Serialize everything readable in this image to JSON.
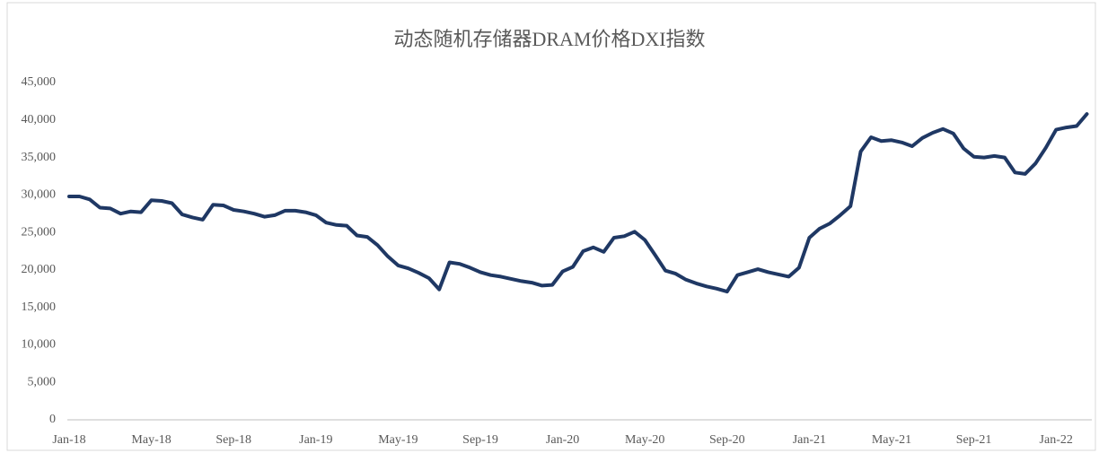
{
  "chart_data": {
    "type": "line",
    "title": "动态随机存储器DRAM价格DXI指数",
    "categories": [
      "Jan-18",
      null,
      null,
      null,
      null,
      null,
      null,
      null,
      "May-18",
      null,
      null,
      null,
      null,
      null,
      null,
      null,
      "Sep-18",
      null,
      null,
      null,
      null,
      null,
      null,
      null,
      "Jan-19",
      null,
      null,
      null,
      null,
      null,
      null,
      null,
      "May-19",
      null,
      null,
      null,
      null,
      null,
      null,
      null,
      "Sep-19",
      null,
      null,
      null,
      null,
      null,
      null,
      null,
      "Jan-20",
      null,
      null,
      null,
      null,
      null,
      null,
      null,
      "May-20",
      null,
      null,
      null,
      null,
      null,
      null,
      null,
      "Sep-20",
      null,
      null,
      null,
      null,
      null,
      null,
      null,
      "Jan-21",
      null,
      null,
      null,
      null,
      null,
      null,
      null,
      "May-21",
      null,
      null,
      null,
      null,
      null,
      null,
      null,
      "Sep-21",
      null,
      null,
      null,
      null,
      null,
      null,
      null,
      "Jan-22",
      null,
      null,
      null
    ],
    "series": [
      {
        "name": "DXI",
        "color": "#1f3864",
        "values": [
          29800,
          29800,
          29400,
          28300,
          28200,
          27500,
          27800,
          27700,
          29300,
          29200,
          28900,
          27400,
          27000,
          26700,
          28700,
          28600,
          28000,
          27800,
          27500,
          27100,
          27300,
          27900,
          27900,
          27700,
          27300,
          26300,
          26000,
          25900,
          24600,
          24400,
          23300,
          21800,
          20600,
          20200,
          19600,
          18900,
          17400,
          21000,
          20800,
          20300,
          19700,
          19300,
          19100,
          18800,
          18500,
          18300,
          17900,
          18000,
          19800,
          20400,
          22500,
          23000,
          22400,
          24300,
          24500,
          25100,
          24000,
          22000,
          19900,
          19500,
          18700,
          18200,
          17800,
          17500,
          17100,
          19300,
          19700,
          20100,
          19700,
          19400,
          19100,
          20300,
          24300,
          25500,
          26200,
          27300,
          28500,
          35800,
          37700,
          37200,
          37300,
          37000,
          36500,
          37600,
          38300,
          38800,
          38200,
          36200,
          35100,
          35000,
          35200,
          35000,
          33000,
          32800,
          34200,
          36300,
          38700,
          39000,
          39200,
          40800
        ]
      }
    ],
    "ylim": [
      0,
      45000
    ],
    "yticks": [
      0,
      {
        "value": 5000,
        "label": "5,000"
      },
      {
        "value": 10000,
        "label": "10,000"
      },
      {
        "value": 15000,
        "label": "15,000"
      },
      {
        "value": 20000,
        "label": "20,000"
      },
      {
        "value": 25000,
        "label": "25,000"
      },
      {
        "value": 30000,
        "label": "30,000"
      },
      {
        "value": 35000,
        "label": "35,000"
      },
      {
        "value": 40000,
        "label": "40,000"
      },
      {
        "value": 45000,
        "label": "45,000"
      }
    ],
    "grid": false
  }
}
